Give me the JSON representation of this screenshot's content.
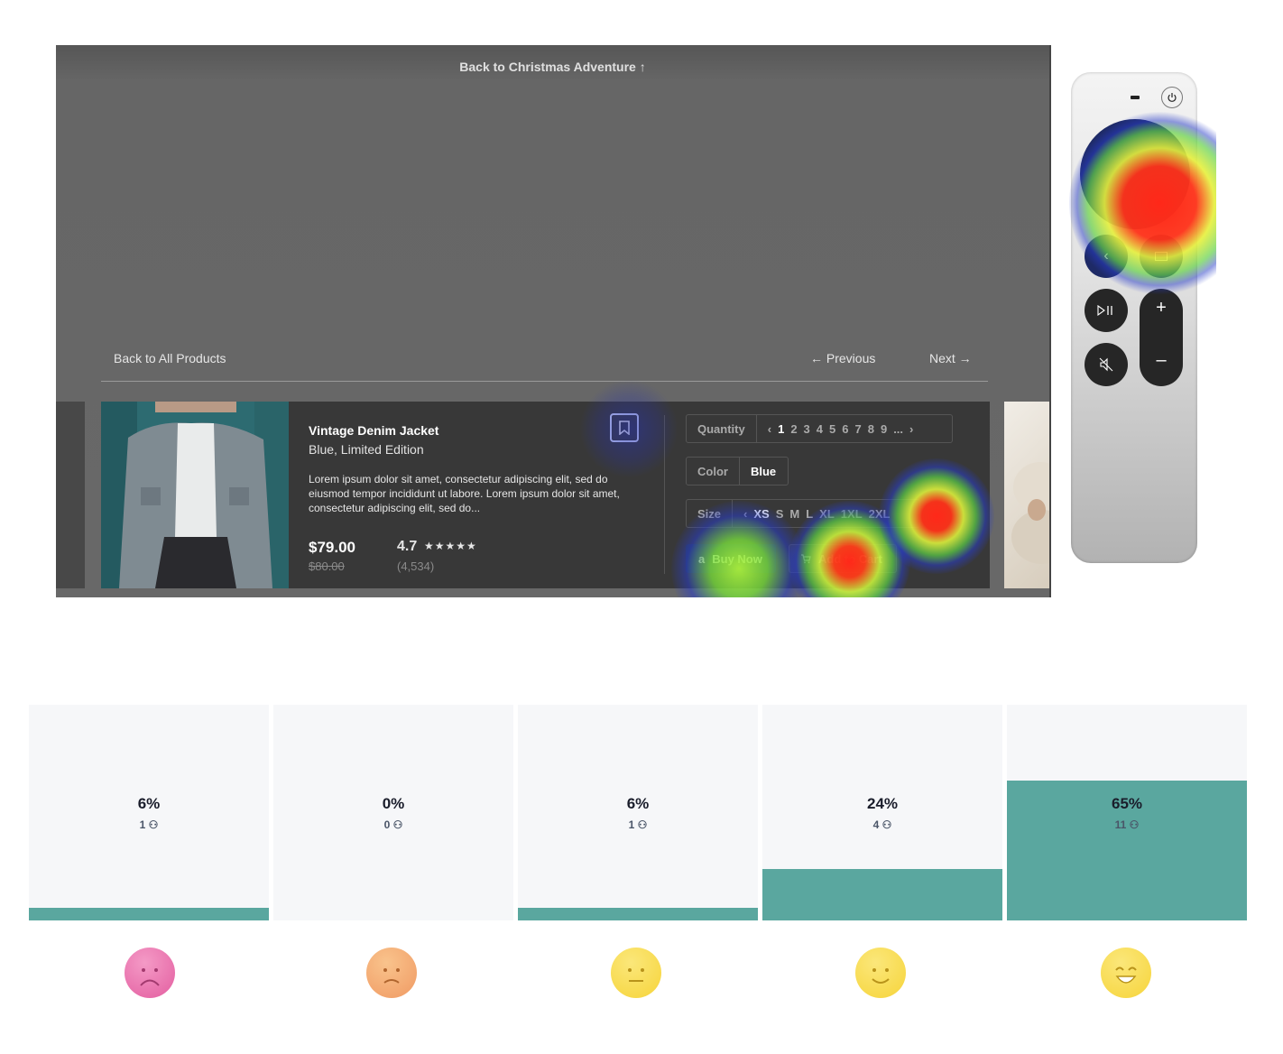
{
  "app": {
    "back_to_adventure": "Back to Christmas Adventure ↑",
    "back_to_products": "Back to All Products",
    "previous": "←  Previous",
    "next": "Next  →"
  },
  "product": {
    "title": "Vintage Denim Jacket",
    "subtitle": "Blue, Limited Edition",
    "description": "Lorem ipsum dolor sit amet, consectetur adipiscing elit, sed do eiusmod tempor incididunt ut labore. Lorem ipsum dolor sit amet, consectetur adipiscing elit, sed do...",
    "price": "$79.00",
    "old_price": "$80.00",
    "rating": "4.7",
    "stars": "★★★★★",
    "review_count": "(4,534)",
    "quantity_label": "Quantity",
    "quantity_prev": "‹",
    "quantity_selected": "1",
    "quantity_values": [
      "2",
      "3",
      "4",
      "5",
      "6",
      "7",
      "8",
      "9",
      "..."
    ],
    "quantity_next": "›",
    "color_label": "Color",
    "color_value": "Blue",
    "size_label": "Size",
    "size_prev": "‹",
    "size_selected": "XS",
    "size_values": [
      "S",
      "M",
      "L",
      "XL",
      "1XL",
      "2XL"
    ],
    "buy_now": "Buy Now",
    "buy_prefix": "a",
    "add_to_cart": "Add to Cart"
  },
  "remote_icons": [
    "tv-icon",
    "power-icon",
    "back-icon",
    "home-icon",
    "play-pause-icon",
    "mute-icon",
    "volume-up-icon",
    "volume-down-icon"
  ],
  "distribution": {
    "buckets": [
      {
        "percent": "6%",
        "count": "1",
        "level": 0.06,
        "mood": "very-sad"
      },
      {
        "percent": "0%",
        "count": "0",
        "level": 0.0,
        "mood": "sad"
      },
      {
        "percent": "6%",
        "count": "1",
        "level": 0.06,
        "mood": "neutral"
      },
      {
        "percent": "24%",
        "count": "4",
        "level": 0.24,
        "mood": "happy"
      },
      {
        "percent": "65%",
        "count": "11",
        "level": 0.65,
        "mood": "very-happy"
      }
    ],
    "bar_color": "#5aa79f"
  },
  "colors": {
    "heat_hot": "#ff2a1a",
    "heat_warm": "#c6f046",
    "heat_cool": "#2233cc",
    "card_bg": "#383838"
  }
}
